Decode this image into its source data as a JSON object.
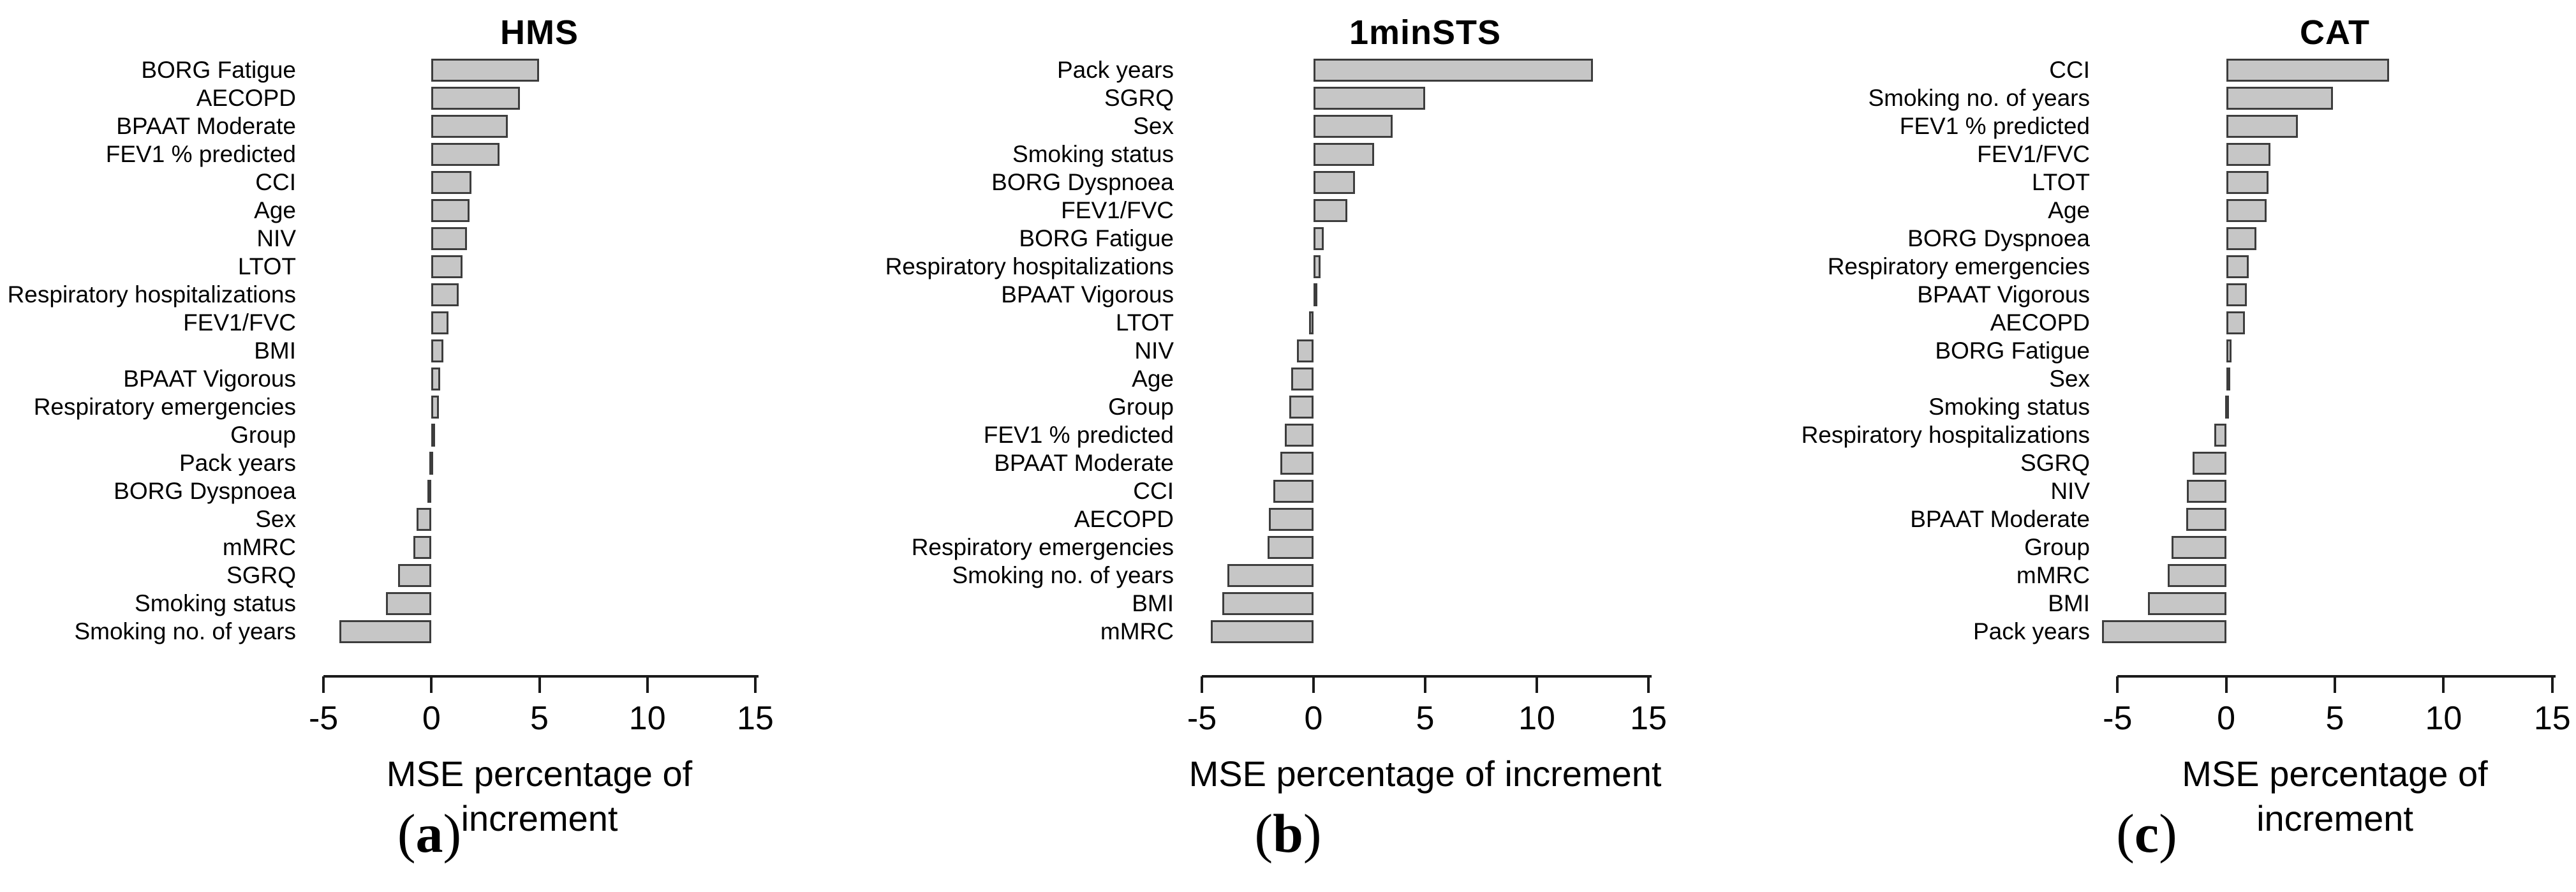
{
  "figure": {
    "xlabel": "MSE percentage of increment",
    "panels": [
      {
        "title": "HMS",
        "caption_open": "(",
        "caption_letter": "a",
        "caption_close": ")"
      },
      {
        "title": "1minSTS",
        "caption_open": "(",
        "caption_letter": "b",
        "caption_close": ")"
      },
      {
        "title": "CAT",
        "caption_open": "(",
        "caption_letter": "c",
        "caption_close": ")"
      }
    ]
  },
  "style": {
    "background": "#ffffff",
    "bar_fill": "#c6c6c6",
    "bar_border": "#3d3d3d",
    "axis_color": "#1a1a1a",
    "text_color": "#000000"
  },
  "chart_data": [
    {
      "type": "bar",
      "orientation": "horizontal",
      "title": "HMS",
      "xlabel": "MSE percentage of increment",
      "xlim": [
        -5.8,
        15.8
      ],
      "xticks": [
        -5,
        0,
        5,
        10,
        15
      ],
      "grid": false,
      "legend": false,
      "categories": [
        "BORG Fatigue",
        "AECOPD",
        "BPAAT Moderate",
        "FEV1 % predicted",
        "CCI",
        "Age",
        "NIV",
        "LTOT",
        "Respiratory hospitalizations",
        "FEV1/FVC",
        "BMI",
        "BPAAT Vigorous",
        "Respiratory emergencies",
        "Group",
        "Pack years",
        "BORG Dyspnoea",
        "Sex",
        "mMRC",
        "SGRQ",
        "Smoking status",
        "Smoking no. of years"
      ],
      "values": [
        5.0,
        4.1,
        3.55,
        3.15,
        1.85,
        1.75,
        1.65,
        1.45,
        1.25,
        0.8,
        0.55,
        0.4,
        0.35,
        0.05,
        -0.1,
        -0.2,
        -0.7,
        -0.85,
        -1.55,
        -2.1,
        -4.25
      ]
    },
    {
      "type": "bar",
      "orientation": "horizontal",
      "title": "1minSTS",
      "xlabel": "MSE percentage of increment",
      "xlim": [
        -5.8,
        15.8
      ],
      "xticks": [
        -5,
        0,
        5,
        10,
        15
      ],
      "grid": false,
      "legend": false,
      "categories": [
        "Pack years",
        "SGRQ",
        "Sex",
        "Smoking status",
        "BORG Dyspnoea",
        "FEV1/FVC",
        "BORG Fatigue",
        "Respiratory hospitalizations",
        "BPAAT Vigorous",
        "LTOT",
        "NIV",
        "Age",
        "Group",
        "FEV1 % predicted",
        "BPAAT Moderate",
        "CCI",
        "AECOPD",
        "Respiratory emergencies",
        "Smoking no. of years",
        "BMI",
        "mMRC"
      ],
      "values": [
        12.5,
        5.0,
        3.55,
        2.7,
        1.85,
        1.5,
        0.45,
        0.3,
        0.05,
        -0.2,
        -0.75,
        -1.0,
        -1.1,
        -1.3,
        -1.5,
        -1.8,
        -2.0,
        -2.05,
        -3.85,
        -4.1,
        -4.6
      ]
    },
    {
      "type": "bar",
      "orientation": "horizontal",
      "title": "CAT",
      "xlabel": "MSE percentage of increment",
      "xlim": [
        -5.8,
        15.8
      ],
      "xticks": [
        -5,
        0,
        5,
        10,
        15
      ],
      "grid": false,
      "legend": false,
      "categories": [
        "CCI",
        "Smoking no. of years",
        "FEV1 % predicted",
        "FEV1/FVC",
        "LTOT",
        "Age",
        "BORG Dyspnoea",
        "Respiratory emergencies",
        "BPAAT Vigorous",
        "AECOPD",
        "BORG Fatigue",
        "Sex",
        "Smoking status",
        "Respiratory hospitalizations",
        "SGRQ",
        "NIV",
        "BPAAT Moderate",
        "Group",
        "mMRC",
        "BMI",
        "Pack years"
      ],
      "values": [
        7.5,
        4.9,
        3.3,
        2.05,
        1.95,
        1.85,
        1.4,
        1.05,
        0.95,
        0.85,
        0.25,
        0.15,
        -0.05,
        -0.55,
        -1.55,
        -1.8,
        -1.85,
        -2.5,
        -2.7,
        -3.6,
        -5.7
      ]
    }
  ]
}
